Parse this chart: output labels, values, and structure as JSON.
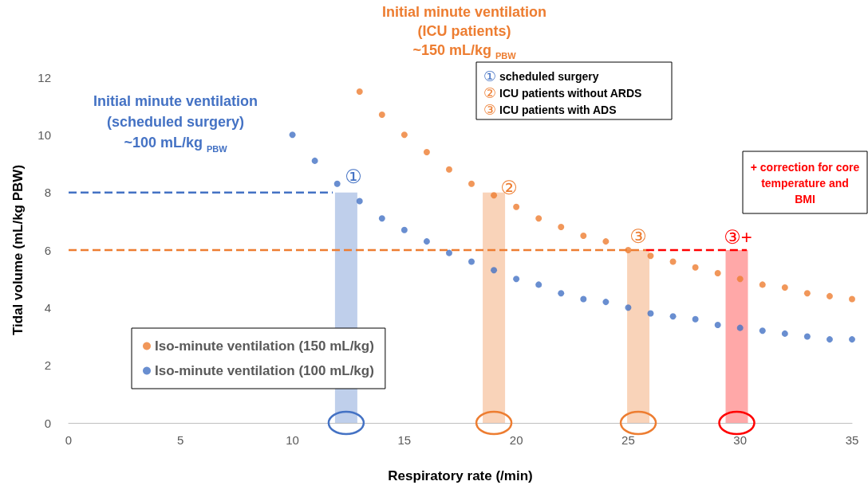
{
  "chart_data": {
    "type": "scatter",
    "xlabel": "Respiratory rate (/min)",
    "ylabel": "Tidal volume (mL/kg PBW)",
    "xlim": [
      0,
      35
    ],
    "xticks": [
      0,
      5,
      10,
      15,
      20,
      25,
      30,
      35
    ],
    "ylim": [
      0,
      12
    ],
    "yticks": [
      0,
      2,
      4,
      6,
      8,
      10,
      12
    ],
    "grid": false,
    "legend": "bottom left",
    "marker": "circle",
    "series": [
      {
        "name": "Iso-minute ventilation (150 mL/kg)",
        "color": "#ed7d31",
        "x": [
          13,
          14,
          15,
          16,
          17,
          18,
          19,
          20,
          21,
          22,
          23,
          24,
          25,
          26,
          27,
          28,
          29,
          30,
          31,
          32,
          33,
          34,
          35
        ],
        "values": [
          11.5,
          10.7,
          10.0,
          9.4,
          8.8,
          8.3,
          7.9,
          7.5,
          7.1,
          6.8,
          6.5,
          6.3,
          6.0,
          5.8,
          5.6,
          5.4,
          5.2,
          5.0,
          4.8,
          4.7,
          4.5,
          4.4,
          4.3
        ]
      },
      {
        "name": "Iso-minute ventilation (100 mL/kg)",
        "color": "#4472c4",
        "x": [
          10,
          11,
          12,
          13,
          14,
          15,
          16,
          17,
          18,
          19,
          20,
          21,
          22,
          23,
          24,
          25,
          26,
          27,
          28,
          29,
          30,
          31,
          32,
          33,
          34,
          35
        ],
        "values": [
          10.0,
          9.1,
          8.3,
          7.7,
          7.1,
          6.7,
          6.3,
          5.9,
          5.6,
          5.3,
          5.0,
          4.8,
          4.5,
          4.3,
          4.2,
          4.0,
          3.8,
          3.7,
          3.6,
          3.4,
          3.3,
          3.2,
          3.1,
          3.0,
          2.9,
          2.9
        ]
      },
      {
        "type": "bar",
        "x": [
          12.4,
          19,
          25.45,
          29.85
        ],
        "values": [
          8,
          8,
          6,
          6
        ],
        "colors": [
          "#b4c7e7",
          "#f8cbad",
          "#f8cbad",
          "#ff9999"
        ]
      },
      {
        "type": "line",
        "color": "#4472c4",
        "line_style": "dashed",
        "marker": "none",
        "x": [
          0,
          11.8
        ],
        "values": [
          8,
          8
        ]
      },
      {
        "type": "line",
        "color": "#ed7d31",
        "line_style": "dashed",
        "marker": "none",
        "x": [
          0,
          25.8
        ],
        "values": [
          6,
          6
        ]
      },
      {
        "type": "line",
        "color": "#ff0000",
        "line_style": "dashed",
        "marker": "none",
        "x": [
          25.8,
          30.3
        ],
        "values": [
          6,
          6
        ]
      }
    ],
    "annotations": [
      "Initial minute ventilation\n(ICU patients)\n~150 mL/kg $_{PBW}$",
      "Initial minute ventilation\n(scheduled surgery)\n~100 mL/kg $_{PBW}$",
      "① scheduled surgery",
      "② ICU patients without ARDS",
      "③ ICU patients with ADS",
      "+ correction for core temperature and BMI",
      "①",
      "②",
      "③",
      "③+"
    ]
  }
}
